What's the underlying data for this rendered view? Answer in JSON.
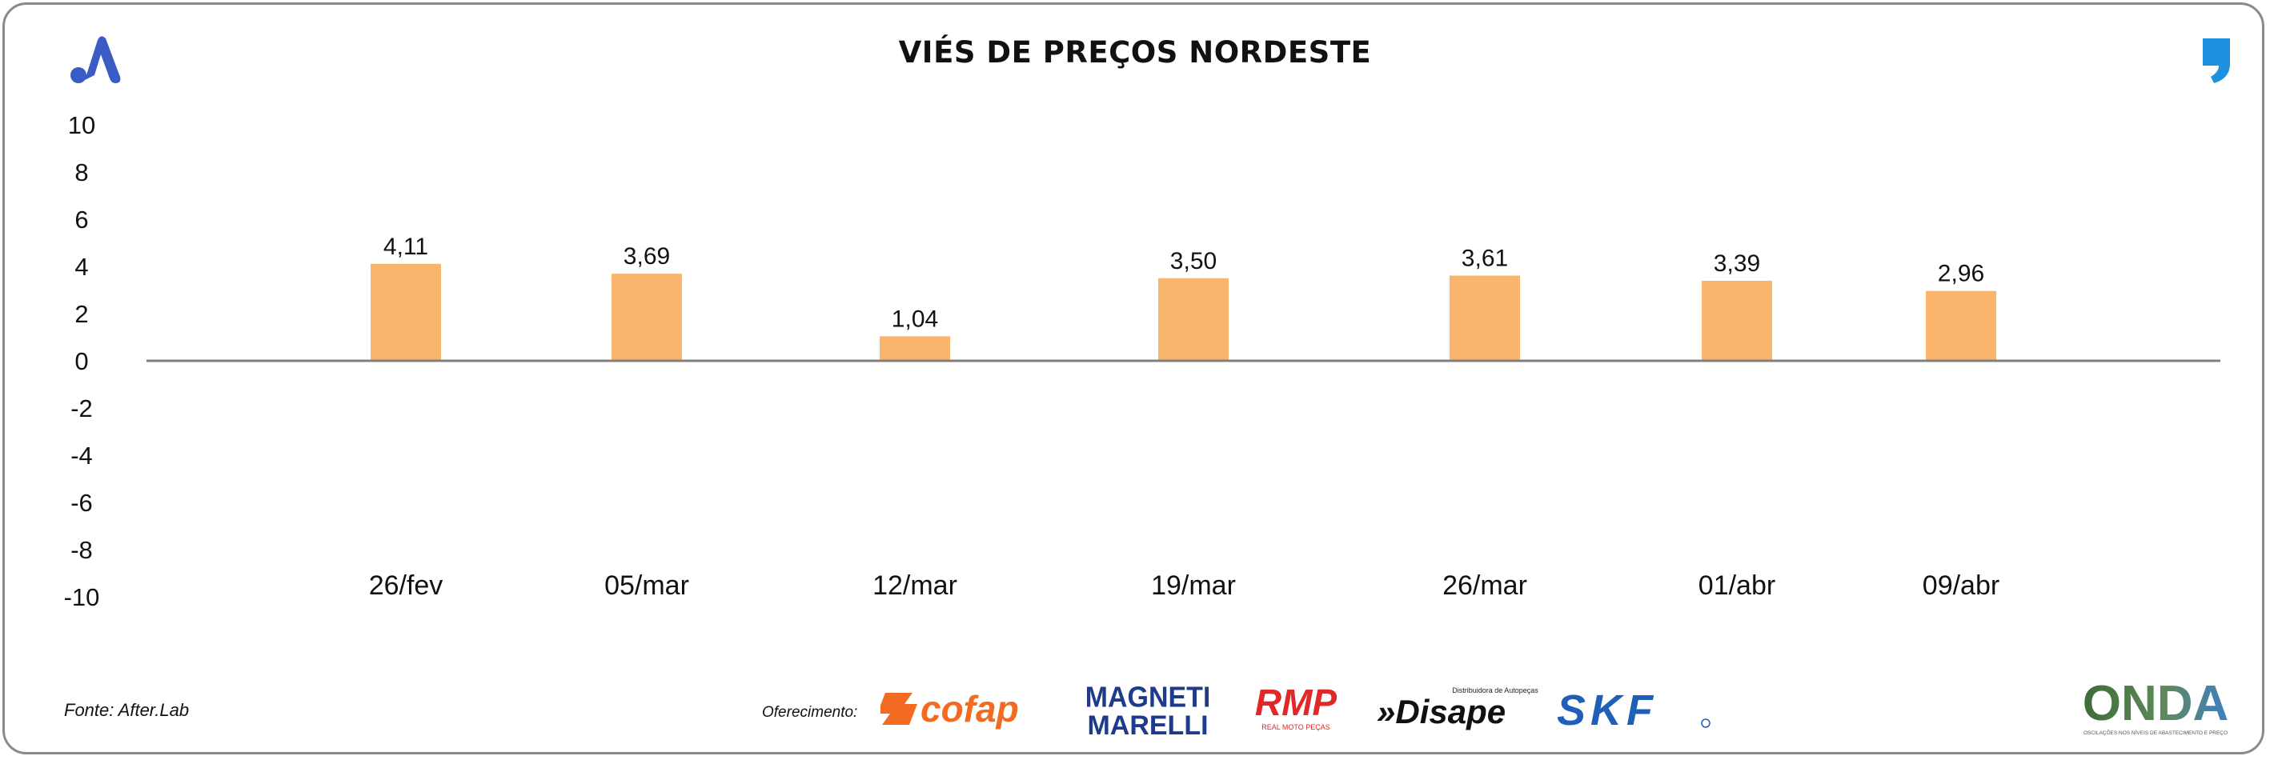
{
  "title": "VIÉS DE PREÇOS NORDESTE",
  "source": "Fonte: After.Lab",
  "sponsor_label": "Oferecimento:",
  "sponsors": {
    "cofap": "cofap",
    "magneti_top": "MAGNETI",
    "magneti_bottom": "MARELLI",
    "rmp": "RMP",
    "rmp_sub": "REAL MOTO PEÇAS",
    "disape": "»Disape",
    "disape_sub": "Distribuidora de Autopeças",
    "skf": "SKF",
    "onda": "ONDA",
    "onda_sub": "OSCILAÇÕES NOS NÍVEIS DE ABASTECIMENTO E PREÇO"
  },
  "colors": {
    "bar": "#F9B56B",
    "axis": "#7f7f7f",
    "brand_blue": "#3B5BC5",
    "quote_blue": "#1E90E0",
    "cofap_orange": "#F26B21",
    "magneti_blue": "#1E3A8A",
    "rmp_red": "#E02828",
    "skf_blue": "#1F5FB8",
    "onda_green": "#4A7A4A"
  },
  "icons": {
    "brand_logo": "a-logo-icon",
    "quote": "quote-icon"
  },
  "chart_data": {
    "type": "bar",
    "title": "VIÉS DE PREÇOS NORDESTE",
    "categories": [
      "26/fev",
      "05/mar",
      "12/mar",
      "19/mar",
      "26/mar",
      "01/abr",
      "09/abr"
    ],
    "values": [
      4.11,
      3.69,
      1.04,
      3.5,
      3.61,
      3.39,
      2.96
    ],
    "value_labels": [
      "4,11",
      "3,69",
      "1,04",
      "3,50",
      "3,61",
      "3,39",
      "2,96"
    ],
    "y_ticks": [
      "10",
      "8",
      "6",
      "4",
      "2",
      "0",
      "-2",
      "-4",
      "-6",
      "-8",
      "-10"
    ],
    "ylim": [
      -10,
      10
    ],
    "grid": false,
    "legend": "none"
  }
}
